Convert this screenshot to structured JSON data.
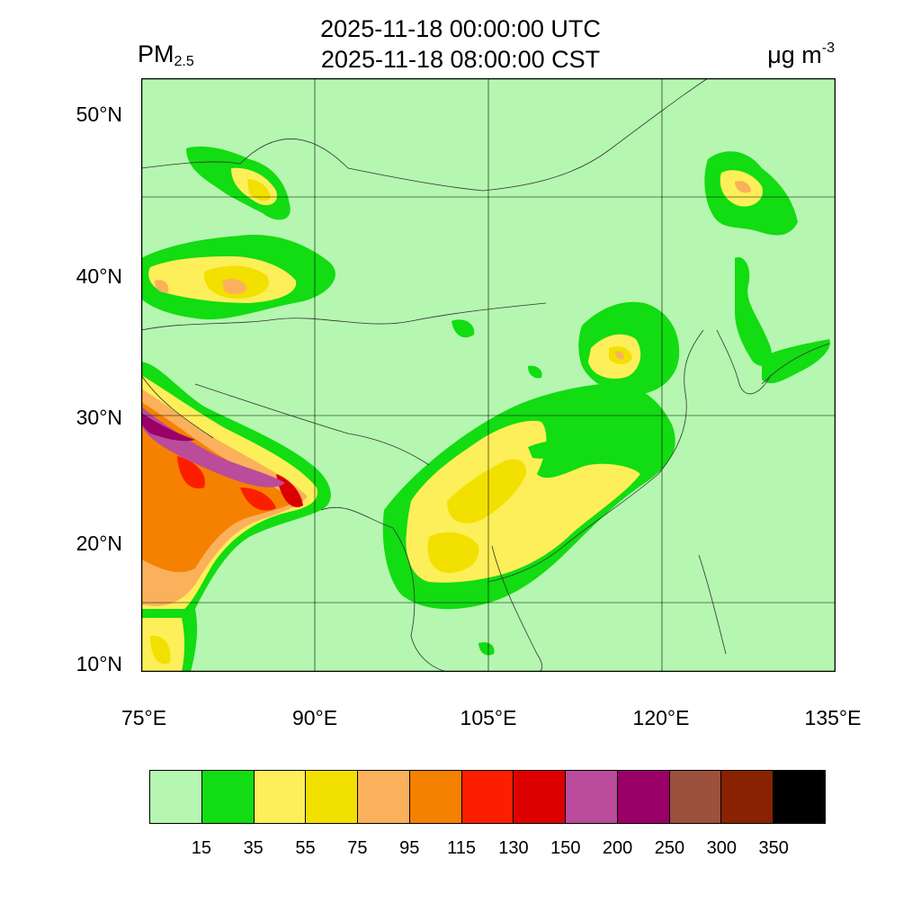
{
  "header": {
    "title_utc": "2025-11-18 00:00:00 UTC",
    "title_cst": "2025-11-18 08:00:00 CST",
    "variable": "PM",
    "variable_sub": "2.5",
    "unit": "μg m",
    "unit_sup": "-3"
  },
  "map": {
    "lat_range": [
      9,
      52.5
    ],
    "lon_range": [
      75,
      135
    ],
    "lat_ticks": [
      {
        "value": 10,
        "label": "10°N"
      },
      {
        "value": 20,
        "label": "20°N"
      },
      {
        "value": 30,
        "label": "30°N"
      },
      {
        "value": 40,
        "label": "40°N"
      },
      {
        "value": 50,
        "label": "50°N"
      }
    ],
    "lon_ticks": [
      {
        "value": 75,
        "label": "75°E"
      },
      {
        "value": 90,
        "label": "90°E"
      },
      {
        "value": 105,
        "label": "105°E"
      },
      {
        "value": 120,
        "label": "120°E"
      },
      {
        "value": 135,
        "label": "135°E"
      }
    ],
    "background_color": "#b5f7b0"
  },
  "colorbar": {
    "colors": [
      "#b5f7b0",
      "#12dc12",
      "#fdef59",
      "#f2e000",
      "#fbb15b",
      "#f68100",
      "#fd1e00",
      "#dc0000",
      "#bb4b9b",
      "#9b0068",
      "#9b513d",
      "#882200",
      "#000000"
    ],
    "labels": [
      "15",
      "35",
      "55",
      "75",
      "95",
      "115",
      "130",
      "150",
      "200",
      "250",
      "300",
      "350"
    ]
  }
}
